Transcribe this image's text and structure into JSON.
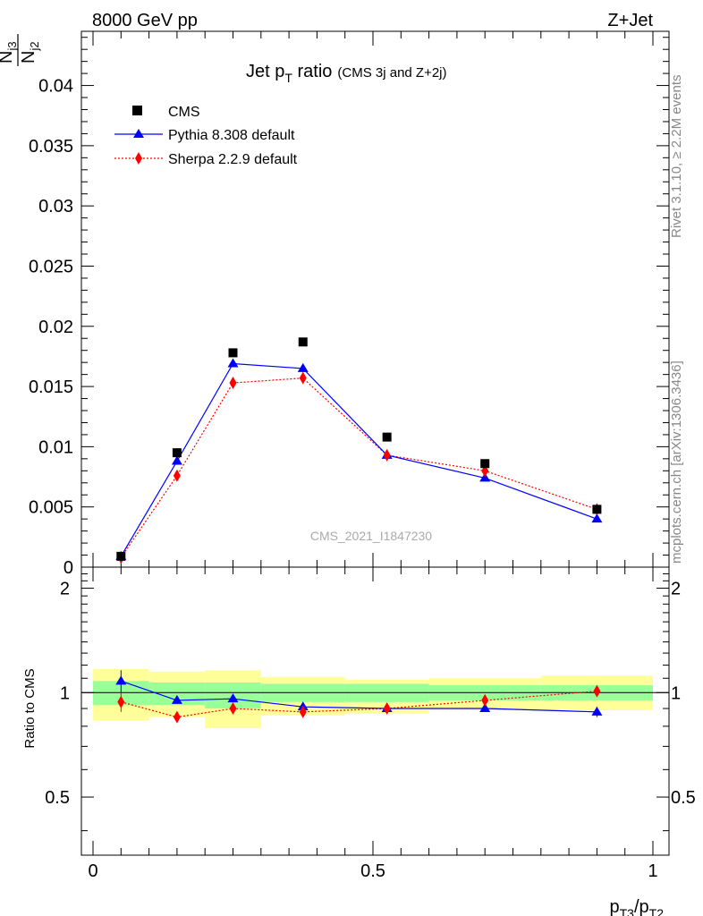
{
  "header": {
    "left": "8000 GeV pp",
    "right": "Z+Jet"
  },
  "side_text": {
    "rivet": "Rivet 3.1.10, ≥ 2.2M events",
    "mcplots": "mcplots.cern.ch [arXiv:1306.3436]"
  },
  "watermark": "CMS_2021_I1847230",
  "chart_data": [
    {
      "type": "scatter",
      "panel": "main",
      "title": {
        "main": "Jet p",
        "main_sub": "T",
        "main_rest": " ratio",
        "small": "(CMS 3j and Z+2j)"
      },
      "ylabel": {
        "num": "N",
        "num_sub": "j3",
        "den": "N",
        "den_sub": "j2"
      },
      "xlim": [
        0,
        1
      ],
      "ylim": [
        0,
        0.0445
      ],
      "yticks": [
        0,
        0.005,
        0.01,
        0.015,
        0.02,
        0.025,
        0.03,
        0.035,
        0.04
      ],
      "ytick_labels": [
        "0",
        "0.005",
        "0.01",
        "0.015",
        "0.02",
        "0.025",
        "0.03",
        "0.035",
        "0.04"
      ],
      "legend_position": "top-left",
      "series": [
        {
          "name": "CMS",
          "style": "marker-square",
          "color": "#000000",
          "x": [
            0.05,
            0.15,
            0.25,
            0.375,
            0.525,
            0.7,
            0.9
          ],
          "y": [
            0.0009,
            0.0095,
            0.0178,
            0.0187,
            0.0108,
            0.0086,
            0.0048
          ]
        },
        {
          "name": "Pythia 8.308 default",
          "style": "line-triangle",
          "color": "#0000ff",
          "x": [
            0.05,
            0.15,
            0.25,
            0.375,
            0.525,
            0.7,
            0.9
          ],
          "y": [
            0.0009,
            0.0088,
            0.0169,
            0.0165,
            0.0093,
            0.0074,
            0.004
          ],
          "yerr": [
            0.0001,
            0.0003,
            0.0003,
            0.0003,
            0.0002,
            0.0002,
            0.0002
          ]
        },
        {
          "name": "Sherpa 2.2.9 default",
          "style": "dotted-diamond",
          "color": "#ff0000",
          "x": [
            0.05,
            0.15,
            0.25,
            0.375,
            0.525,
            0.7,
            0.9
          ],
          "y": [
            0.0008,
            0.0076,
            0.0153,
            0.0157,
            0.0093,
            0.008,
            0.0048
          ]
        }
      ]
    },
    {
      "type": "scatter",
      "panel": "ratio",
      "ylabel": "Ratio to CMS",
      "xlabel": {
        "p1": "p",
        "sub1": "T3",
        "slash": "/p",
        "sub2": "T2"
      },
      "xlim": [
        0,
        1
      ],
      "ylim": [
        0.34,
        2.3
      ],
      "xticks": [
        0,
        0.5,
        1
      ],
      "xtick_labels": [
        "0",
        "0.5",
        "1"
      ],
      "yticks": [
        0.5,
        1,
        2
      ],
      "ytick_labels": [
        "0.5",
        "1",
        "2"
      ],
      "bands": {
        "bin_edges": [
          0,
          0.1,
          0.2,
          0.3,
          0.45,
          0.6,
          0.8,
          1.0
        ],
        "green_lo": [
          0.92,
          0.92,
          0.9,
          0.94,
          0.94,
          0.95,
          0.95
        ],
        "green_hi": [
          1.08,
          1.07,
          1.07,
          1.06,
          1.06,
          1.05,
          1.05
        ],
        "yellow_lo": [
          0.83,
          0.85,
          0.79,
          0.86,
          0.87,
          0.89,
          0.89
        ],
        "yellow_hi": [
          1.17,
          1.15,
          1.16,
          1.11,
          1.09,
          1.1,
          1.12
        ]
      },
      "series": [
        {
          "name": "Pythia 8.308 default",
          "color": "#0000ff",
          "x": [
            0.05,
            0.15,
            0.25,
            0.375,
            0.525,
            0.7,
            0.9
          ],
          "y": [
            1.08,
            0.95,
            0.96,
            0.91,
            0.9,
            0.9,
            0.88
          ],
          "yerr": [
            0.08,
            0.02,
            0.015,
            0.02,
            0.02,
            0.02,
            0.03
          ]
        },
        {
          "name": "Sherpa 2.2.9 default",
          "color": "#ff0000",
          "x": [
            0.05,
            0.15,
            0.25,
            0.375,
            0.525,
            0.7,
            0.9
          ],
          "y": [
            0.94,
            0.85,
            0.9,
            0.88,
            0.9,
            0.95,
            1.01
          ],
          "yerr": [
            0.06,
            0.01,
            0.01,
            0.01,
            0.01,
            0.01,
            0.01
          ]
        }
      ]
    }
  ]
}
